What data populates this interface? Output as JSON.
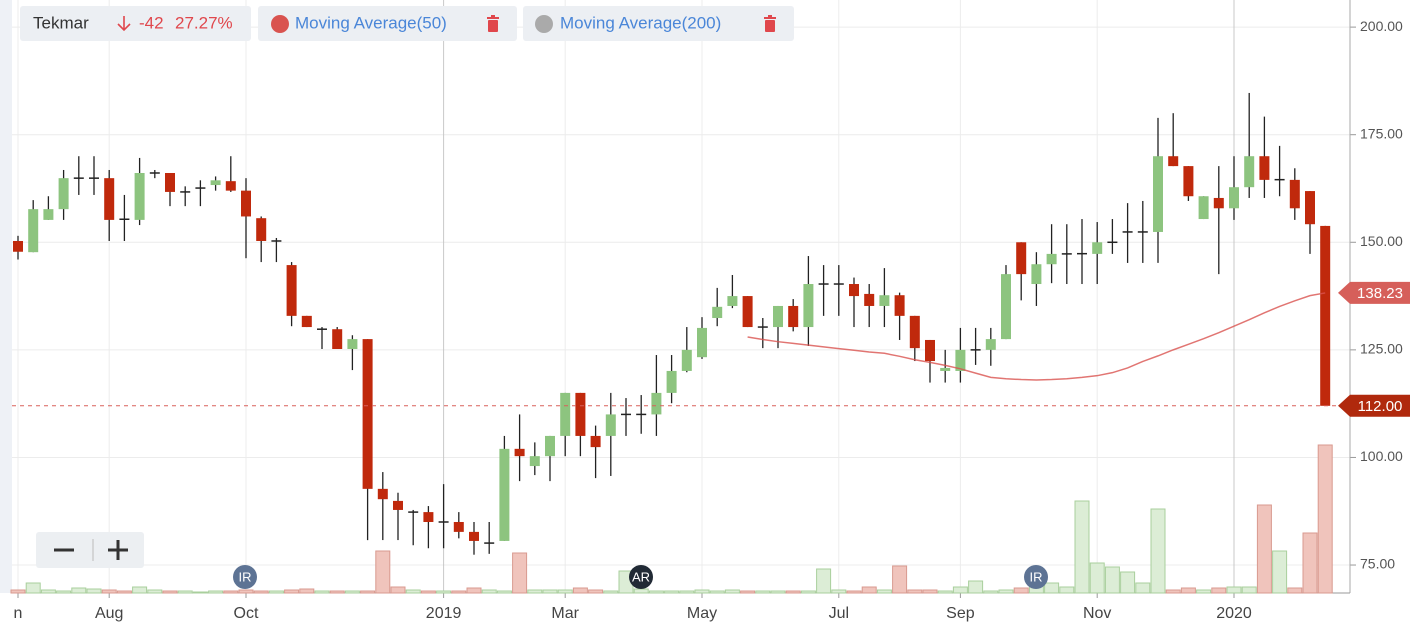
{
  "chart_data": {
    "type": "candlestick",
    "title": "Tekmar",
    "change": "-42",
    "change_percent": "27.27%",
    "ylim": [
      68.5,
      206.3
    ],
    "yticks": [
      {
        "value": 75,
        "label": "75.00"
      },
      {
        "value": 100,
        "label": "100.00"
      },
      {
        "value": 125,
        "label": "125.00"
      },
      {
        "value": 150,
        "label": "150.00"
      },
      {
        "value": 175,
        "label": "175.00"
      },
      {
        "value": 200,
        "label": "200.00"
      }
    ],
    "grid": true,
    "up_color": "#8dc47f",
    "down_color": "#c0290c",
    "categories": [
      "n",
      null,
      null,
      null,
      null,
      null,
      "Aug",
      null,
      null,
      null,
      null,
      null,
      null,
      null,
      null,
      "Oct",
      null,
      null,
      null,
      null,
      null,
      null,
      null,
      null,
      null,
      null,
      null,
      null,
      "2019",
      null,
      null,
      null,
      null,
      null,
      null,
      null,
      "Mar",
      null,
      null,
      null,
      null,
      null,
      null,
      null,
      null,
      "May",
      null,
      null,
      null,
      null,
      null,
      null,
      null,
      null,
      "Jul",
      null,
      null,
      null,
      null,
      null,
      null,
      null,
      "Sep",
      null,
      null,
      null,
      null,
      null,
      null,
      null,
      null,
      "Nov",
      null,
      null,
      null,
      null,
      null,
      null,
      null,
      null,
      "2020",
      null,
      null,
      null,
      null,
      null,
      null
    ],
    "open": [
      150.3,
      147.7,
      155.2,
      157.7,
      164.9,
      164.9,
      164.9,
      155.5,
      155.2,
      166.1,
      166.1,
      161.7,
      162.6,
      163.3,
      164.2,
      162,
      155.6,
      150.3,
      144.7,
      132.9,
      129.8,
      129.8,
      125.2,
      127.5,
      92.7,
      89.9,
      87.3,
      87.3,
      85,
      85,
      82.7,
      80.1,
      80.6,
      102,
      98,
      100.3,
      105,
      115,
      105,
      105,
      110,
      110,
      110,
      115,
      120.1,
      123.3,
      132.4,
      135.2,
      137.5,
      130.3,
      130.3,
      135.2,
      130.3,
      140.3,
      140.3,
      140.3,
      138,
      135.2,
      137.7,
      132.9,
      127.3,
      120.1,
      120.1,
      125,
      125,
      127.5,
      150,
      140.3,
      144.9,
      147.3,
      147.3,
      147.3,
      150,
      152.4,
      152.4,
      152.4,
      170,
      167.7,
      155.4,
      160.3,
      157.9,
      162.8,
      170,
      164.5,
      164.5,
      161.9,
      153.8
    ],
    "high": [
      151.5,
      159.8,
      160.7,
      166.8,
      170,
      170,
      166.8,
      161,
      169.6,
      166.8,
      166.1,
      163,
      164.4,
      165.3,
      170,
      164.9,
      156,
      151,
      145.4,
      132.9,
      130.3,
      130.3,
      128.4,
      127.5,
      96.6,
      91.8,
      87.8,
      88.7,
      93.8,
      87.3,
      85,
      85,
      105,
      110,
      103.5,
      105,
      115,
      115,
      107.4,
      115,
      113.8,
      114.5,
      123.8,
      123.8,
      130.3,
      132.6,
      139.4,
      142.4,
      137.5,
      132.4,
      135.2,
      136.8,
      146.8,
      144.7,
      144.7,
      141.8,
      140.3,
      144,
      138.3,
      132.9,
      127.3,
      125,
      130.1,
      130.1,
      130.1,
      144.7,
      150,
      147.7,
      154.2,
      154.2,
      155.4,
      154.7,
      155.4,
      159.1,
      159.6,
      178.9,
      180,
      167.7,
      160.7,
      167.7,
      170,
      184.7,
      179.2,
      172.4,
      167.2,
      161.9,
      153.8
    ],
    "low": [
      146,
      147.7,
      155.2,
      155.2,
      161,
      161,
      150.3,
      150.3,
      154,
      164.9,
      158.4,
      158.4,
      158.4,
      162,
      161.7,
      146.3,
      145.4,
      145.4,
      130.5,
      130.3,
      125.2,
      125.2,
      120.3,
      80.8,
      80.8,
      80.8,
      79.6,
      78.9,
      78.9,
      81.2,
      77.4,
      77.6,
      80.6,
      94.5,
      95.9,
      94.5,
      100.3,
      100.3,
      95.2,
      95.7,
      105,
      105.5,
      105,
      112.6,
      119.8,
      122.9,
      130.5,
      134.7,
      130.3,
      125.4,
      125.4,
      129.3,
      125.9,
      132.9,
      132.9,
      130.3,
      130.3,
      130.3,
      127.3,
      122.4,
      117.4,
      117.4,
      117.4,
      121.5,
      121.3,
      127.5,
      136.5,
      135.2,
      140.5,
      140.3,
      140.3,
      140.3,
      147.3,
      145.2,
      145.2,
      145.2,
      167.7,
      159.6,
      155.4,
      142.6,
      155.2,
      160.3,
      160.3,
      160.7,
      155.2,
      147.3,
      112
    ],
    "close": [
      147.8,
      157.7,
      157.7,
      164.9,
      164.9,
      164.9,
      155.2,
      155.2,
      166.1,
      166.1,
      161.7,
      161.7,
      162.6,
      164.4,
      162,
      156,
      150.3,
      150.3,
      132.9,
      130.3,
      129.8,
      125.2,
      127.5,
      92.7,
      90.3,
      87.8,
      87.3,
      85,
      85,
      82.7,
      80.6,
      80.1,
      102,
      100.3,
      100.3,
      105,
      115,
      105,
      102.4,
      110,
      110,
      110,
      115,
      120.1,
      125,
      130.1,
      135,
      137.5,
      130.3,
      130.3,
      135.2,
      130.3,
      140.3,
      140.3,
      140.3,
      137.5,
      135.2,
      137.7,
      132.9,
      125.4,
      122.4,
      120.8,
      125,
      125,
      127.5,
      142.6,
      142.6,
      144.9,
      147.3,
      147.3,
      147.4,
      150,
      150,
      152.4,
      152.4,
      170,
      167.7,
      160.7,
      160.7,
      157.9,
      162.8,
      170,
      164.5,
      164.6,
      157.9,
      154.2,
      112
    ],
    "volume": [
      3,
      10,
      3,
      2,
      5,
      4,
      3,
      2,
      6,
      3,
      2,
      2,
      1,
      2,
      2,
      3,
      2,
      2,
      3,
      4,
      2,
      2,
      2,
      2,
      42,
      6,
      3,
      2,
      2,
      2,
      5,
      3,
      2,
      40,
      3,
      3,
      3,
      5,
      3,
      2,
      22,
      4,
      2,
      2,
      2,
      3,
      2,
      3,
      2,
      2,
      2,
      2,
      2,
      24,
      3,
      2,
      6,
      3,
      27,
      3,
      3,
      2,
      6,
      12,
      2,
      3,
      5,
      7,
      10,
      6,
      92,
      30,
      26,
      21,
      10,
      84,
      3,
      5,
      3,
      5,
      6,
      6,
      88,
      42,
      5,
      60,
      148
    ],
    "series": [
      {
        "name": "Moving Average(50)",
        "color": "#d9534f",
        "values": [
          null,
          null,
          null,
          null,
          null,
          null,
          null,
          null,
          null,
          null,
          null,
          null,
          null,
          null,
          null,
          null,
          null,
          null,
          null,
          null,
          null,
          null,
          null,
          null,
          null,
          null,
          null,
          null,
          null,
          null,
          null,
          null,
          null,
          null,
          null,
          null,
          null,
          null,
          null,
          null,
          null,
          null,
          null,
          null,
          null,
          null,
          null,
          null,
          128.0,
          127.4,
          126.9,
          126.5,
          126.1,
          125.7,
          125.3,
          124.9,
          124.5,
          124.2,
          123.5,
          122.7,
          122.1,
          121.4,
          120.6,
          119.6,
          118.6,
          118.3,
          118.1,
          118.0,
          118.1,
          118.3,
          118.6,
          119.0,
          119.7,
          120.8,
          122.3,
          123.6,
          125.0,
          126.3,
          127.6,
          129.0,
          130.5,
          132.0,
          133.6,
          135.1,
          136.4,
          137.6,
          138.23
        ]
      },
      {
        "name": "Moving Average(200)",
        "color": "#aaaaaa"
      }
    ],
    "ma_tag": {
      "value": 138.23,
      "label": "138.23"
    },
    "price_tag": {
      "value": 112,
      "label": "112.00"
    },
    "events": [
      {
        "label": "IR"
      },
      {
        "label": "AR"
      },
      {
        "label": "IR"
      }
    ]
  }
}
